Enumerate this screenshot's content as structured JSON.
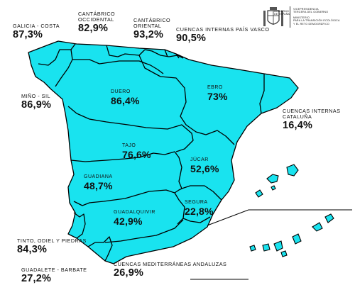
{
  "regions": {
    "galicia_costa": {
      "name": "GALICIA - COSTA",
      "value": "87,3%"
    },
    "cantabrico_occidental": {
      "name": "CANTÁBRICO\nOCCIDENTAL",
      "value": "82,9%"
    },
    "cantabrico_oriental": {
      "name": "CANTÁBRICO\nORIENTAL",
      "value": "93,2%"
    },
    "pais_vasco": {
      "name": "CUENCAS INTERNAS PAÍS VASCO",
      "value": "90,5%"
    },
    "mino_sil": {
      "name": "MIÑO - SIL",
      "value": "86,9%"
    },
    "duero": {
      "name": "DUERO",
      "value": "86,4%"
    },
    "ebro": {
      "name": "EBRO",
      "value": "73%"
    },
    "cataluna": {
      "name": "CUENCAS INTERNAS\nCATALUÑA",
      "value": "16,4%"
    },
    "tajo": {
      "name": "TAJO",
      "value": "76,6%"
    },
    "jucar": {
      "name": "JÚCAR",
      "value": "52,6%"
    },
    "guadiana": {
      "name": "GUADIANA",
      "value": "48,7%"
    },
    "segura": {
      "name": "SEGURA",
      "value": "22,8%"
    },
    "guadalquivir": {
      "name": "GUADALQUIVIR",
      "value": "42,9%"
    },
    "tinto_odiel": {
      "name": "TINTO, ODIEL Y PIEDRAS",
      "value": "84,3%"
    },
    "guadalete": {
      "name": "GUADALETE - BARBATE",
      "value": "27,2%"
    },
    "andaluzas": {
      "name": "CUENCAS MEDITERRÁNEAS ANDALUZAS",
      "value": "26,9%"
    }
  },
  "logo": {
    "gov": "GOBIERNO\nDE ESPAÑA",
    "vice": "VICEPRESIDENCIA\nTERCERA DEL GOBIERNO",
    "ministry": "MINISTERIO\nPARA LA TRANSICIÓN ECOLÓGICA\nY EL RETO DEMOGRÁFICO"
  },
  "colors": {
    "basin_fill": "#19e3ef",
    "outline": "#000000"
  }
}
